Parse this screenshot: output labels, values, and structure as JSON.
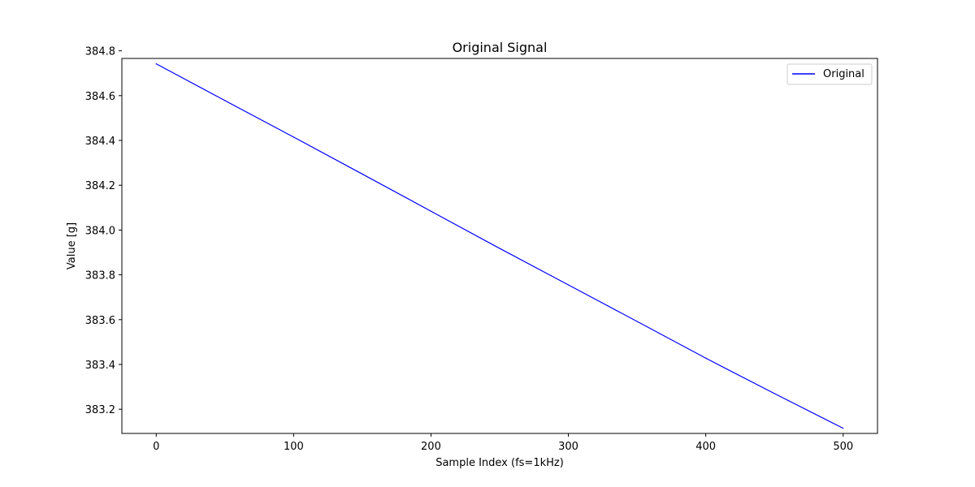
{
  "chart_data": {
    "type": "line",
    "title": "Original Signal",
    "xlabel": "Sample Index (fs=1kHz)",
    "ylabel": "Value [g]",
    "xlim": [
      -25,
      525
    ],
    "ylim": [
      383.092,
      384.766
    ],
    "xticks": [
      0,
      100,
      200,
      300,
      400,
      500
    ],
    "xtick_labels": [
      "0",
      "100",
      "200",
      "300",
      "400",
      "500"
    ],
    "yticks": [
      383.2,
      383.4,
      383.6,
      383.8,
      384.0,
      384.2,
      384.4,
      384.6,
      384.8
    ],
    "ytick_labels": [
      "383.2",
      "383.4",
      "383.6",
      "383.8",
      "384.0",
      "384.2",
      "384.4",
      "384.6",
      "384.8"
    ],
    "grid": false,
    "legend_position": "top-right",
    "series": [
      {
        "name": "Original",
        "color": "#0000ff",
        "x": [
          0,
          50,
          100,
          150,
          200,
          250,
          300,
          350,
          400,
          450,
          500
        ],
        "y": [
          384.742,
          384.578,
          384.415,
          384.25,
          384.084,
          383.918,
          383.755,
          383.592,
          383.428,
          383.27,
          383.115
        ]
      }
    ]
  }
}
